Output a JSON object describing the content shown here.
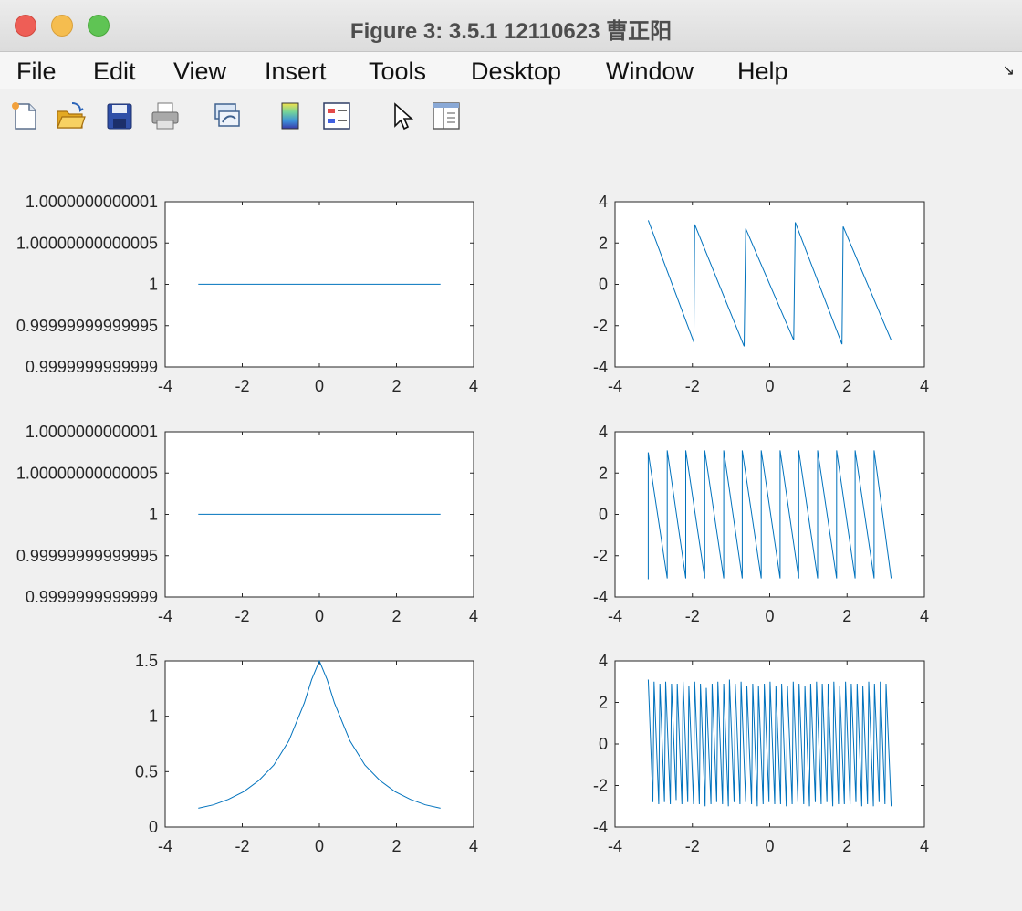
{
  "window": {
    "title": "Figure 3: 3.5.1 12110623 曹正阳"
  },
  "menu": [
    "File",
    "Edit",
    "View",
    "Insert",
    "Tools",
    "Desktop",
    "Window",
    "Help"
  ],
  "toolbar": {
    "icons": [
      "new-figure-icon",
      "open-file-icon",
      "save-icon",
      "print-icon",
      "link-icon",
      "colorbar-icon",
      "legend-icon",
      "pointer-icon",
      "property-editor-icon"
    ]
  },
  "colors": {
    "line": "#0072bd",
    "axes_bg": "#ffffff",
    "figure_bg": "#f0f0f0"
  },
  "chart_data": [
    {
      "type": "line",
      "position": "row1-left",
      "xlim": [
        -4,
        4
      ],
      "xticks": [
        "-4",
        "-2",
        "0",
        "2",
        "4"
      ],
      "ylim": [
        0.9999999999999,
        1.0000000000001
      ],
      "yticks": [
        "0.9999999999999",
        "0.99999999999995",
        "1",
        "1.00000000000005",
        "1.0000000000001"
      ],
      "series": [
        {
          "x": [
            -3.1416,
            3.1416
          ],
          "y": [
            1,
            1
          ]
        }
      ]
    },
    {
      "type": "line",
      "position": "row1-right",
      "xlim": [
        -4,
        4
      ],
      "xticks": [
        "-4",
        "-2",
        "0",
        "2",
        "4"
      ],
      "ylim": [
        -4,
        4
      ],
      "yticks": [
        "-4",
        "-2",
        "0",
        "2",
        "4"
      ],
      "series": [
        {
          "x": [
            -3.14,
            -1.96,
            -1.94,
            -0.66,
            -0.62,
            0.62,
            0.66,
            1.87,
            1.9,
            3.14
          ],
          "y": [
            3.1,
            -2.8,
            2.9,
            -3.0,
            2.7,
            -2.7,
            3.0,
            -2.9,
            2.8,
            -2.7
          ]
        }
      ]
    },
    {
      "type": "line",
      "position": "row2-left",
      "xlim": [
        -4,
        4
      ],
      "xticks": [
        "-4",
        "-2",
        "0",
        "2",
        "4"
      ],
      "ylim": [
        0.9999999999999,
        1.0000000000001
      ],
      "yticks": [
        "0.9999999999999",
        "0.99999999999995",
        "1",
        "1.00000000000005",
        "1.0000000000001"
      ],
      "series": [
        {
          "x": [
            -3.1416,
            3.1416
          ],
          "y": [
            1,
            1
          ]
        }
      ]
    },
    {
      "type": "line",
      "position": "row2-right",
      "xlim": [
        -4,
        4
      ],
      "xticks": [
        "-4",
        "-2",
        "0",
        "2",
        "4"
      ],
      "ylim": [
        -4,
        4
      ],
      "yticks": [
        "-4",
        "-2",
        "0",
        "2",
        "4"
      ],
      "series": [
        {
          "x": [
            -3.14,
            -3.14,
            -2.65,
            -2.65,
            -2.17,
            -2.17,
            -1.68,
            -1.68,
            -1.19,
            -1.19,
            -0.71,
            -0.71,
            -0.22,
            -0.22,
            0.27,
            0.27,
            0.75,
            0.75,
            1.24,
            1.24,
            1.73,
            1.73,
            2.21,
            2.21,
            2.7,
            2.7,
            3.14
          ],
          "y": [
            -3.14,
            3.0,
            -3.1,
            3.1,
            -3.1,
            3.1,
            -3.1,
            3.1,
            -3.1,
            3.1,
            -3.1,
            3.1,
            -3.1,
            3.1,
            -3.1,
            3.1,
            -3.1,
            3.1,
            -3.1,
            3.1,
            -3.1,
            3.1,
            -3.1,
            3.1,
            -3.1,
            3.1,
            -3.1
          ]
        }
      ]
    },
    {
      "type": "line",
      "position": "row3-left",
      "xlim": [
        -4,
        4
      ],
      "xticks": [
        "-4",
        "-2",
        "0",
        "2",
        "4"
      ],
      "ylim": [
        0,
        1.5
      ],
      "yticks": [
        "0",
        "0.5",
        "1",
        "1.5"
      ],
      "series": [
        {
          "x": [
            -3.14,
            -2.75,
            -2.36,
            -1.96,
            -1.57,
            -1.18,
            -0.79,
            -0.39,
            -0.2,
            0,
            0.2,
            0.39,
            0.79,
            1.18,
            1.57,
            1.96,
            2.36,
            2.75,
            3.14
          ],
          "y": [
            0.17,
            0.2,
            0.25,
            0.32,
            0.42,
            0.56,
            0.78,
            1.12,
            1.33,
            1.5,
            1.33,
            1.12,
            0.78,
            0.56,
            0.42,
            0.32,
            0.25,
            0.2,
            0.17
          ]
        }
      ]
    },
    {
      "type": "line",
      "position": "row3-right",
      "xlim": [
        -4,
        4
      ],
      "xticks": [
        "-4",
        "-2",
        "0",
        "2",
        "4"
      ],
      "ylim": [
        -4,
        4
      ],
      "yticks": [
        "-4",
        "-2",
        "0",
        "2",
        "4"
      ],
      "series": [
        {
          "x": [
            -3.14,
            -3.02,
            -2.99,
            -2.87,
            -2.84,
            -2.72,
            -2.69,
            -2.57,
            -2.54,
            -2.42,
            -2.39,
            -2.27,
            -2.24,
            -2.12,
            -2.09,
            -1.97,
            -1.94,
            -1.82,
            -1.79,
            -1.67,
            -1.64,
            -1.52,
            -1.49,
            -1.37,
            -1.34,
            -1.22,
            -1.19,
            -1.07,
            -1.04,
            -0.92,
            -0.89,
            -0.77,
            -0.74,
            -0.62,
            -0.59,
            -0.47,
            -0.44,
            -0.32,
            -0.29,
            -0.17,
            -0.14,
            -0.02,
            0.01,
            0.13,
            0.16,
            0.28,
            0.31,
            0.43,
            0.46,
            0.58,
            0.61,
            0.73,
            0.76,
            0.88,
            0.91,
            1.03,
            1.06,
            1.18,
            1.21,
            1.33,
            1.36,
            1.48,
            1.51,
            1.63,
            1.66,
            1.78,
            1.81,
            1.93,
            1.96,
            2.08,
            2.11,
            2.23,
            2.26,
            2.38,
            2.41,
            2.53,
            2.56,
            2.68,
            2.71,
            2.83,
            2.86,
            2.98,
            3.01,
            3.14
          ],
          "y": [
            3.1,
            -2.8,
            3.0,
            -2.9,
            2.9,
            -2.8,
            3.0,
            -2.9,
            2.9,
            -2.7,
            2.9,
            -2.9,
            3.0,
            -2.8,
            2.8,
            -2.9,
            3.0,
            -2.9,
            2.9,
            -3.0,
            2.7,
            -2.9,
            2.9,
            -2.8,
            3.0,
            -2.9,
            2.9,
            -3.0,
            3.1,
            -2.8,
            2.9,
            -2.9,
            3.0,
            -2.8,
            2.8,
            -2.9,
            2.9,
            -3.0,
            2.8,
            -2.9,
            2.9,
            -2.8,
            3.0,
            -2.9,
            2.8,
            -2.9,
            2.9,
            -3.0,
            2.8,
            -2.9,
            3.0,
            -2.8,
            2.9,
            -2.9,
            2.8,
            -3.0,
            2.9,
            -2.8,
            3.0,
            -2.9,
            2.9,
            -2.8,
            2.9,
            -3.0,
            3.0,
            -2.9,
            2.8,
            -2.9,
            3.0,
            -2.9,
            2.9,
            -2.8,
            2.9,
            -3.0,
            2.8,
            -2.9,
            3.0,
            -3.0,
            2.9,
            -2.8,
            3.0,
            -2.9,
            2.9,
            -3.0
          ]
        }
      ]
    }
  ]
}
